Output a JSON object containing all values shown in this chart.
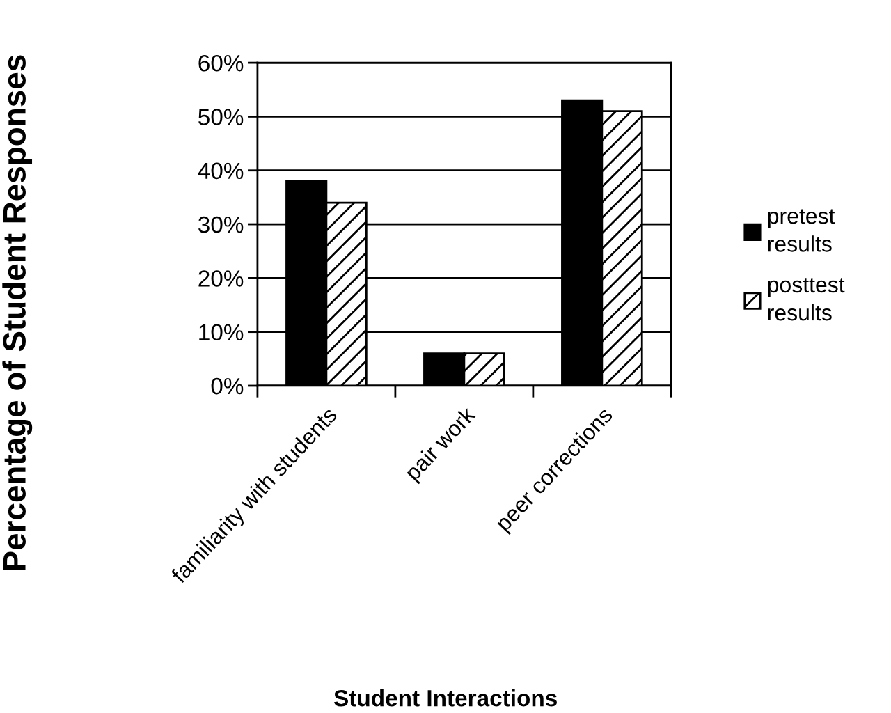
{
  "chart_data": {
    "type": "bar",
    "xlabel": "Student Interactions",
    "ylabel": "Percentage of Student Responses",
    "categories": [
      "familiarity with students",
      "pair work",
      "peer corrections"
    ],
    "series": [
      {
        "name": "pretest results",
        "color": "#000000",
        "values": [
          38,
          6,
          53
        ]
      },
      {
        "name": "posttest results",
        "color": "#000000",
        "values": [
          34,
          6,
          51
        ]
      }
    ],
    "ylim": [
      0,
      60
    ],
    "yticks": [
      {
        "value": 0,
        "label": "0%"
      },
      {
        "value": 10,
        "label": "10%"
      },
      {
        "value": 20,
        "label": "20%"
      },
      {
        "value": 30,
        "label": "30%"
      },
      {
        "value": 40,
        "label": "40%"
      },
      {
        "value": 50,
        "label": "50%"
      },
      {
        "value": 60,
        "label": "60%"
      }
    ],
    "grid": "y",
    "legend": "right"
  }
}
